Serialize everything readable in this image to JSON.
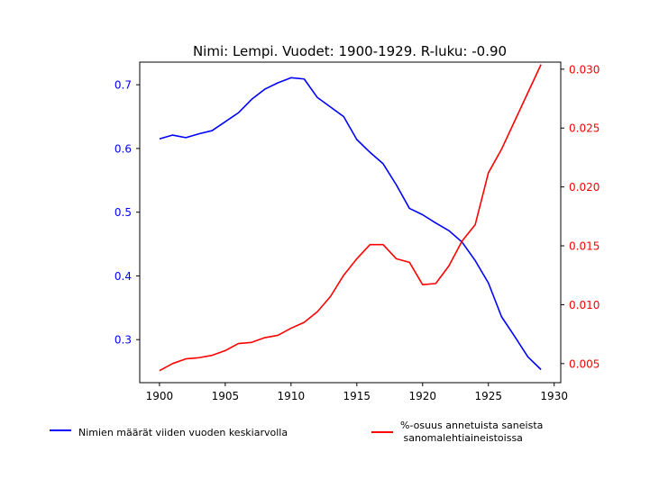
{
  "chart_data": {
    "type": "line",
    "title": "Nimi: Lempi. Vuodet: 1900-1929. R-luku: -0.90",
    "x": [
      1900,
      1901,
      1902,
      1903,
      1904,
      1905,
      1906,
      1907,
      1908,
      1909,
      1910,
      1911,
      1912,
      1913,
      1914,
      1915,
      1916,
      1917,
      1918,
      1919,
      1920,
      1921,
      1922,
      1923,
      1924,
      1925,
      1926,
      1927,
      1928,
      1929
    ],
    "xlim": [
      1898.5,
      1930.5
    ],
    "x_ticks": [
      1900,
      1905,
      1910,
      1915,
      1920,
      1925,
      1930
    ],
    "y_left": {
      "lim": [
        0.2325,
        0.7355
      ],
      "ticks": [
        0.3,
        0.4,
        0.5,
        0.6,
        0.7
      ],
      "tick_labels": [
        "0.3",
        "0.4",
        "0.5",
        "0.6",
        "0.7"
      ],
      "color": "#0000ff"
    },
    "y_right": {
      "lim": [
        0.00338,
        0.0306
      ],
      "ticks": [
        0.005,
        0.01,
        0.015,
        0.02,
        0.025,
        0.03
      ],
      "tick_labels": [
        "0.005",
        "0.010",
        "0.015",
        "0.020",
        "0.025",
        "0.030"
      ],
      "color": "#ff0000"
    },
    "grid": false,
    "legend_placement": "bottom",
    "series": [
      {
        "name": "Nimien määrät viiden vuoden keskiarvolla",
        "axis": "left",
        "color": "#0000ff",
        "values": [
          0.615,
          0.621,
          0.617,
          0.623,
          0.628,
          0.642,
          0.656,
          0.677,
          0.693,
          0.703,
          0.711,
          0.709,
          0.68,
          0.665,
          0.65,
          0.614,
          0.594,
          0.576,
          0.543,
          0.506,
          0.496,
          0.483,
          0.471,
          0.453,
          0.424,
          0.389,
          0.336,
          0.305,
          0.273,
          0.253
        ]
      },
      {
        "name": "%-osuus annetuista saneista\n sanomalehtiaineistoissa",
        "axis": "right",
        "color": "#ff0000",
        "values": [
          0.0044,
          0.005,
          0.0054,
          0.0055,
          0.0057,
          0.0061,
          0.0067,
          0.0068,
          0.0072,
          0.0074,
          0.008,
          0.0085,
          0.0094,
          0.0107,
          0.0125,
          0.0139,
          0.0151,
          0.0151,
          0.0139,
          0.0136,
          0.0117,
          0.0118,
          0.0133,
          0.0154,
          0.0168,
          0.0212,
          0.0232,
          0.0256,
          0.028,
          0.0304
        ]
      }
    ]
  }
}
